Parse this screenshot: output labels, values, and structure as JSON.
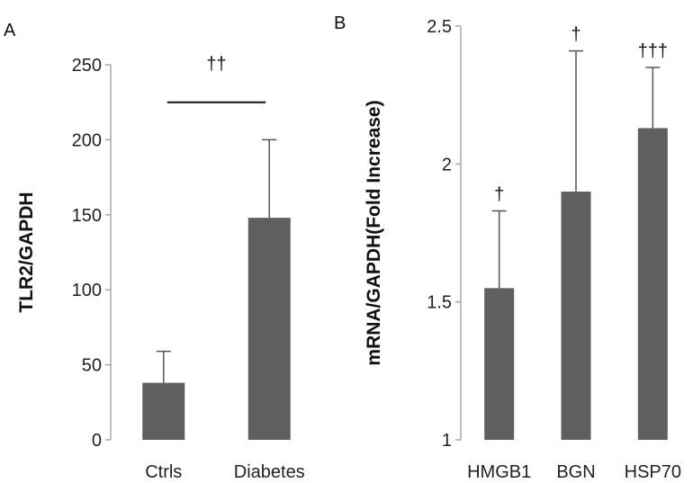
{
  "colors": {
    "bar": "#5f5f5f",
    "axis": "#a8a8a8",
    "error": "#555555",
    "text": "#222222"
  },
  "panels": {
    "a": {
      "label": "A"
    },
    "b": {
      "label": "B"
    }
  },
  "chart_data": [
    {
      "type": "bar",
      "panel": "A",
      "categories": [
        "Ctrls",
        "Diabetes"
      ],
      "values": [
        38,
        148
      ],
      "error_upper": [
        59,
        200
      ],
      "ylabel": "TLR2/GAPDH",
      "xlabel": "",
      "ylim": [
        0,
        250
      ],
      "yticks": [
        0,
        50,
        100,
        150,
        200,
        250
      ],
      "ytick_labels": [
        "0",
        "50",
        "100",
        "150",
        "200",
        "250"
      ],
      "significance": {
        "text": "††",
        "between": [
          "Ctrls",
          "Diabetes"
        ],
        "y": 225
      },
      "grid": false
    },
    {
      "type": "bar",
      "panel": "B",
      "categories": [
        "HMGB1",
        "BGN",
        "HSP70"
      ],
      "values": [
        1.55,
        1.9,
        2.13
      ],
      "error_upper": [
        1.83,
        2.41,
        2.35
      ],
      "ylabel": "mRNA/GAPDH(Fold Increase)",
      "xlabel": "",
      "ylim": [
        1,
        2.5
      ],
      "yticks": [
        1,
        1.5,
        2,
        2.5
      ],
      "ytick_labels": [
        "1",
        "1.5",
        "2",
        "2.5"
      ],
      "significance_labels": [
        "†",
        "†",
        "†††"
      ],
      "grid": false
    }
  ]
}
